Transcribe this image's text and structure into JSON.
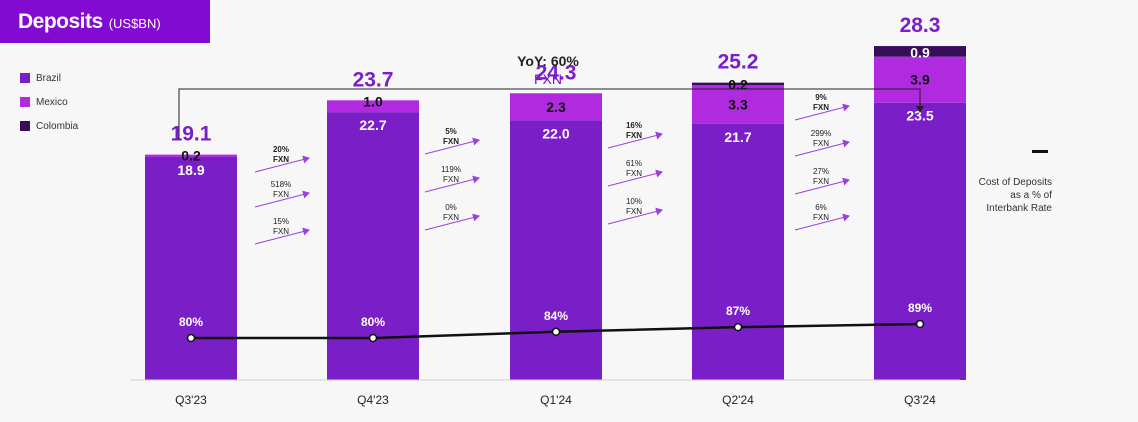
{
  "header": {
    "title": "Deposits",
    "unit": "(US$BN)"
  },
  "legend": [
    {
      "label": "Brazil",
      "color": "#7a1fc7"
    },
    {
      "label": "Mexico",
      "color": "#b02be0"
    },
    {
      "label": "Colombia",
      "color": "#3a0c5c"
    }
  ],
  "yoy": {
    "label": "YoY: 60%",
    "sub": "FXN"
  },
  "rate_legend_label": "Cost of Deposits as a % of Interbank Rate",
  "chart_data": {
    "type": "bar",
    "stacked": true,
    "title": "Deposits (US$BN)",
    "categories": [
      "Q3'23",
      "Q4'23",
      "Q1'24",
      "Q2'24",
      "Q3'24"
    ],
    "series": [
      {
        "name": "Brazil",
        "values": [
          18.9,
          22.7,
          22.0,
          21.7,
          23.5
        ]
      },
      {
        "name": "Mexico",
        "values": [
          0.2,
          1.0,
          2.3,
          3.3,
          3.9
        ]
      },
      {
        "name": "Colombia",
        "values": [
          0,
          0,
          0,
          0.2,
          0.9
        ]
      }
    ],
    "totals": [
      19.1,
      23.7,
      24.3,
      25.2,
      28.3
    ],
    "segment_labels": [
      [
        "18.9",
        "0.2",
        ""
      ],
      [
        "22.7",
        "1.0",
        ""
      ],
      [
        "22.0",
        "2.3",
        ""
      ],
      [
        "21.7",
        "3.3",
        "0.2"
      ],
      [
        "23.5",
        "3.9",
        "0.9"
      ]
    ],
    "line": {
      "name": "Cost of Deposits as a % of Interbank Rate",
      "values": [
        80,
        80,
        84,
        87,
        89
      ],
      "labels": [
        "80%",
        "80%",
        "84%",
        "87%",
        "89%"
      ]
    },
    "growth_arrows": [
      [
        {
          "pct": "20%",
          "fxn": "FXN",
          "bold": true
        },
        {
          "pct": "518%",
          "fxn": "FXN",
          "bold": false
        },
        {
          "pct": "15%",
          "fxn": "FXN",
          "bold": false
        }
      ],
      [
        {
          "pct": "5%",
          "fxn": "FXN",
          "bold": true
        },
        {
          "pct": "119%",
          "fxn": "FXN",
          "bold": false
        },
        {
          "pct": "0%",
          "fxn": "FXN",
          "bold": false
        }
      ],
      [
        {
          "pct": "16%",
          "fxn": "FXN",
          "bold": true
        },
        {
          "pct": "61%",
          "fxn": "FXN",
          "bold": false
        },
        {
          "pct": "10%",
          "fxn": "FXN",
          "bold": false
        }
      ],
      [
        {
          "pct": "9%",
          "fxn": "FXN",
          "bold": true
        },
        {
          "pct": "299%",
          "fxn": "FXN",
          "bold": false
        },
        {
          "pct": "27%",
          "fxn": "FXN",
          "bold": false
        },
        {
          "pct": "6%",
          "fxn": "FXN",
          "bold": false
        }
      ]
    ]
  }
}
